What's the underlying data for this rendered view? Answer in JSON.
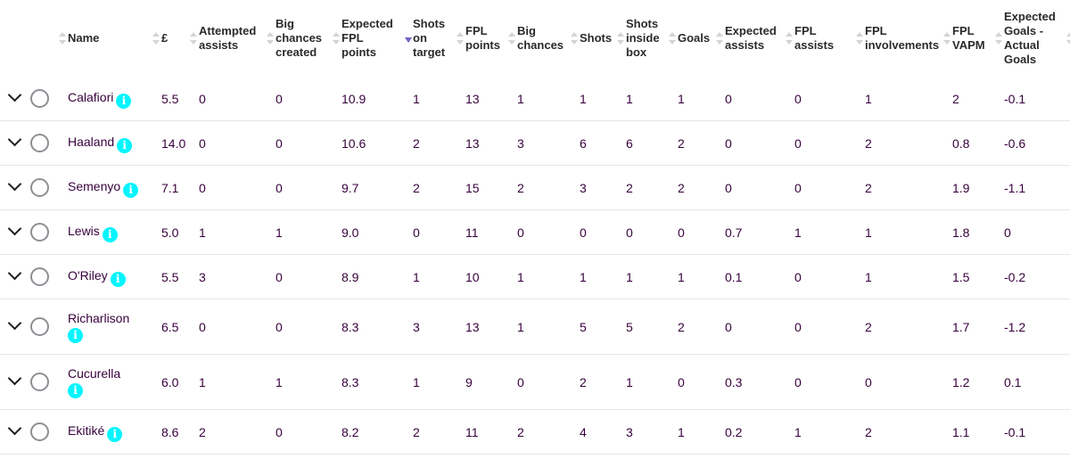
{
  "table": {
    "headers": [
      {
        "label": "",
        "sortable": true,
        "name": "expand"
      },
      {
        "label": "Name",
        "sortable": true,
        "name": "name"
      },
      {
        "label": "£",
        "sortable": true,
        "name": "price"
      },
      {
        "label": "Attempted\nassists",
        "sortable": true,
        "name": "attempted-assists"
      },
      {
        "label": "Big\nchances\ncreated",
        "sortable": true,
        "name": "big-chances-created"
      },
      {
        "label": "Expected\nFPL\npoints",
        "sortable": true,
        "sorted": "desc",
        "name": "expected-fpl-points"
      },
      {
        "label": "Shots\non\ntarget",
        "sortable": true,
        "name": "shots-on-target"
      },
      {
        "label": "FPL\npoints",
        "sortable": true,
        "name": "fpl-points"
      },
      {
        "label": "Big\nchances",
        "sortable": true,
        "name": "big-chances"
      },
      {
        "label": "Shots",
        "sortable": true,
        "name": "shots"
      },
      {
        "label": "Shots\ninside\nbox",
        "sortable": true,
        "name": "shots-inside-box"
      },
      {
        "label": "Goals",
        "sortable": true,
        "name": "goals"
      },
      {
        "label": "Expected\nassists",
        "sortable": true,
        "name": "expected-assists"
      },
      {
        "label": "FPL\nassists",
        "sortable": true,
        "name": "fpl-assists"
      },
      {
        "label": "FPL\ninvolvements",
        "sortable": true,
        "name": "fpl-involvements"
      },
      {
        "label": "FPL\nVAPM",
        "sortable": true,
        "name": "fpl-vapm"
      },
      {
        "label": "Expected\nGoals -\nActual\nGoals",
        "sortable": true,
        "name": "xg-minus-goals"
      }
    ],
    "rows": [
      {
        "name": "Calafiori",
        "cells": [
          "5.5",
          "0",
          "0",
          "10.9",
          "1",
          "13",
          "1",
          "1",
          "1",
          "1",
          "0",
          "0",
          "1",
          "2",
          "-0.1"
        ]
      },
      {
        "name": "Haaland",
        "cells": [
          "14.0",
          "0",
          "0",
          "10.6",
          "2",
          "13",
          "3",
          "6",
          "6",
          "2",
          "0",
          "0",
          "2",
          "0.8",
          "-0.6"
        ]
      },
      {
        "name": "Semenyo",
        "cells": [
          "7.1",
          "0",
          "0",
          "9.7",
          "2",
          "15",
          "2",
          "3",
          "2",
          "2",
          "0",
          "0",
          "2",
          "1.9",
          "-1.1"
        ]
      },
      {
        "name": "Lewis",
        "cells": [
          "5.0",
          "1",
          "1",
          "9.0",
          "0",
          "11",
          "0",
          "0",
          "0",
          "0",
          "0.7",
          "1",
          "1",
          "1.8",
          "0"
        ]
      },
      {
        "name": "O'Riley",
        "cells": [
          "5.5",
          "3",
          "0",
          "8.9",
          "1",
          "10",
          "1",
          "1",
          "1",
          "1",
          "0.1",
          "0",
          "1",
          "1.5",
          "-0.2"
        ]
      },
      {
        "name": "Richarlison",
        "wrap": true,
        "cells": [
          "6.5",
          "0",
          "0",
          "8.3",
          "3",
          "13",
          "1",
          "5",
          "5",
          "2",
          "0",
          "0",
          "2",
          "1.7",
          "-1.2"
        ]
      },
      {
        "name": "Cucurella",
        "wrap": true,
        "cells": [
          "6.0",
          "1",
          "1",
          "8.3",
          "1",
          "9",
          "0",
          "2",
          "1",
          "0",
          "0.3",
          "0",
          "0",
          "1.2",
          "0.1"
        ]
      },
      {
        "name": "Ekitiké",
        "cells": [
          "8.6",
          "2",
          "0",
          "8.2",
          "2",
          "11",
          "2",
          "4",
          "3",
          "1",
          "0.2",
          "1",
          "2",
          "1.1",
          "-0.1"
        ]
      }
    ],
    "icons": {
      "expand": "chevron-down-icon",
      "select": "radio-circle-icon",
      "info": "info-icon",
      "info_glyph": "i"
    }
  },
  "colors": {
    "text": "#37003c",
    "header": "#2a2a2a",
    "info": "#04f5ff",
    "sort_active": "#6c63c9",
    "divider": "#e6e6ea"
  }
}
